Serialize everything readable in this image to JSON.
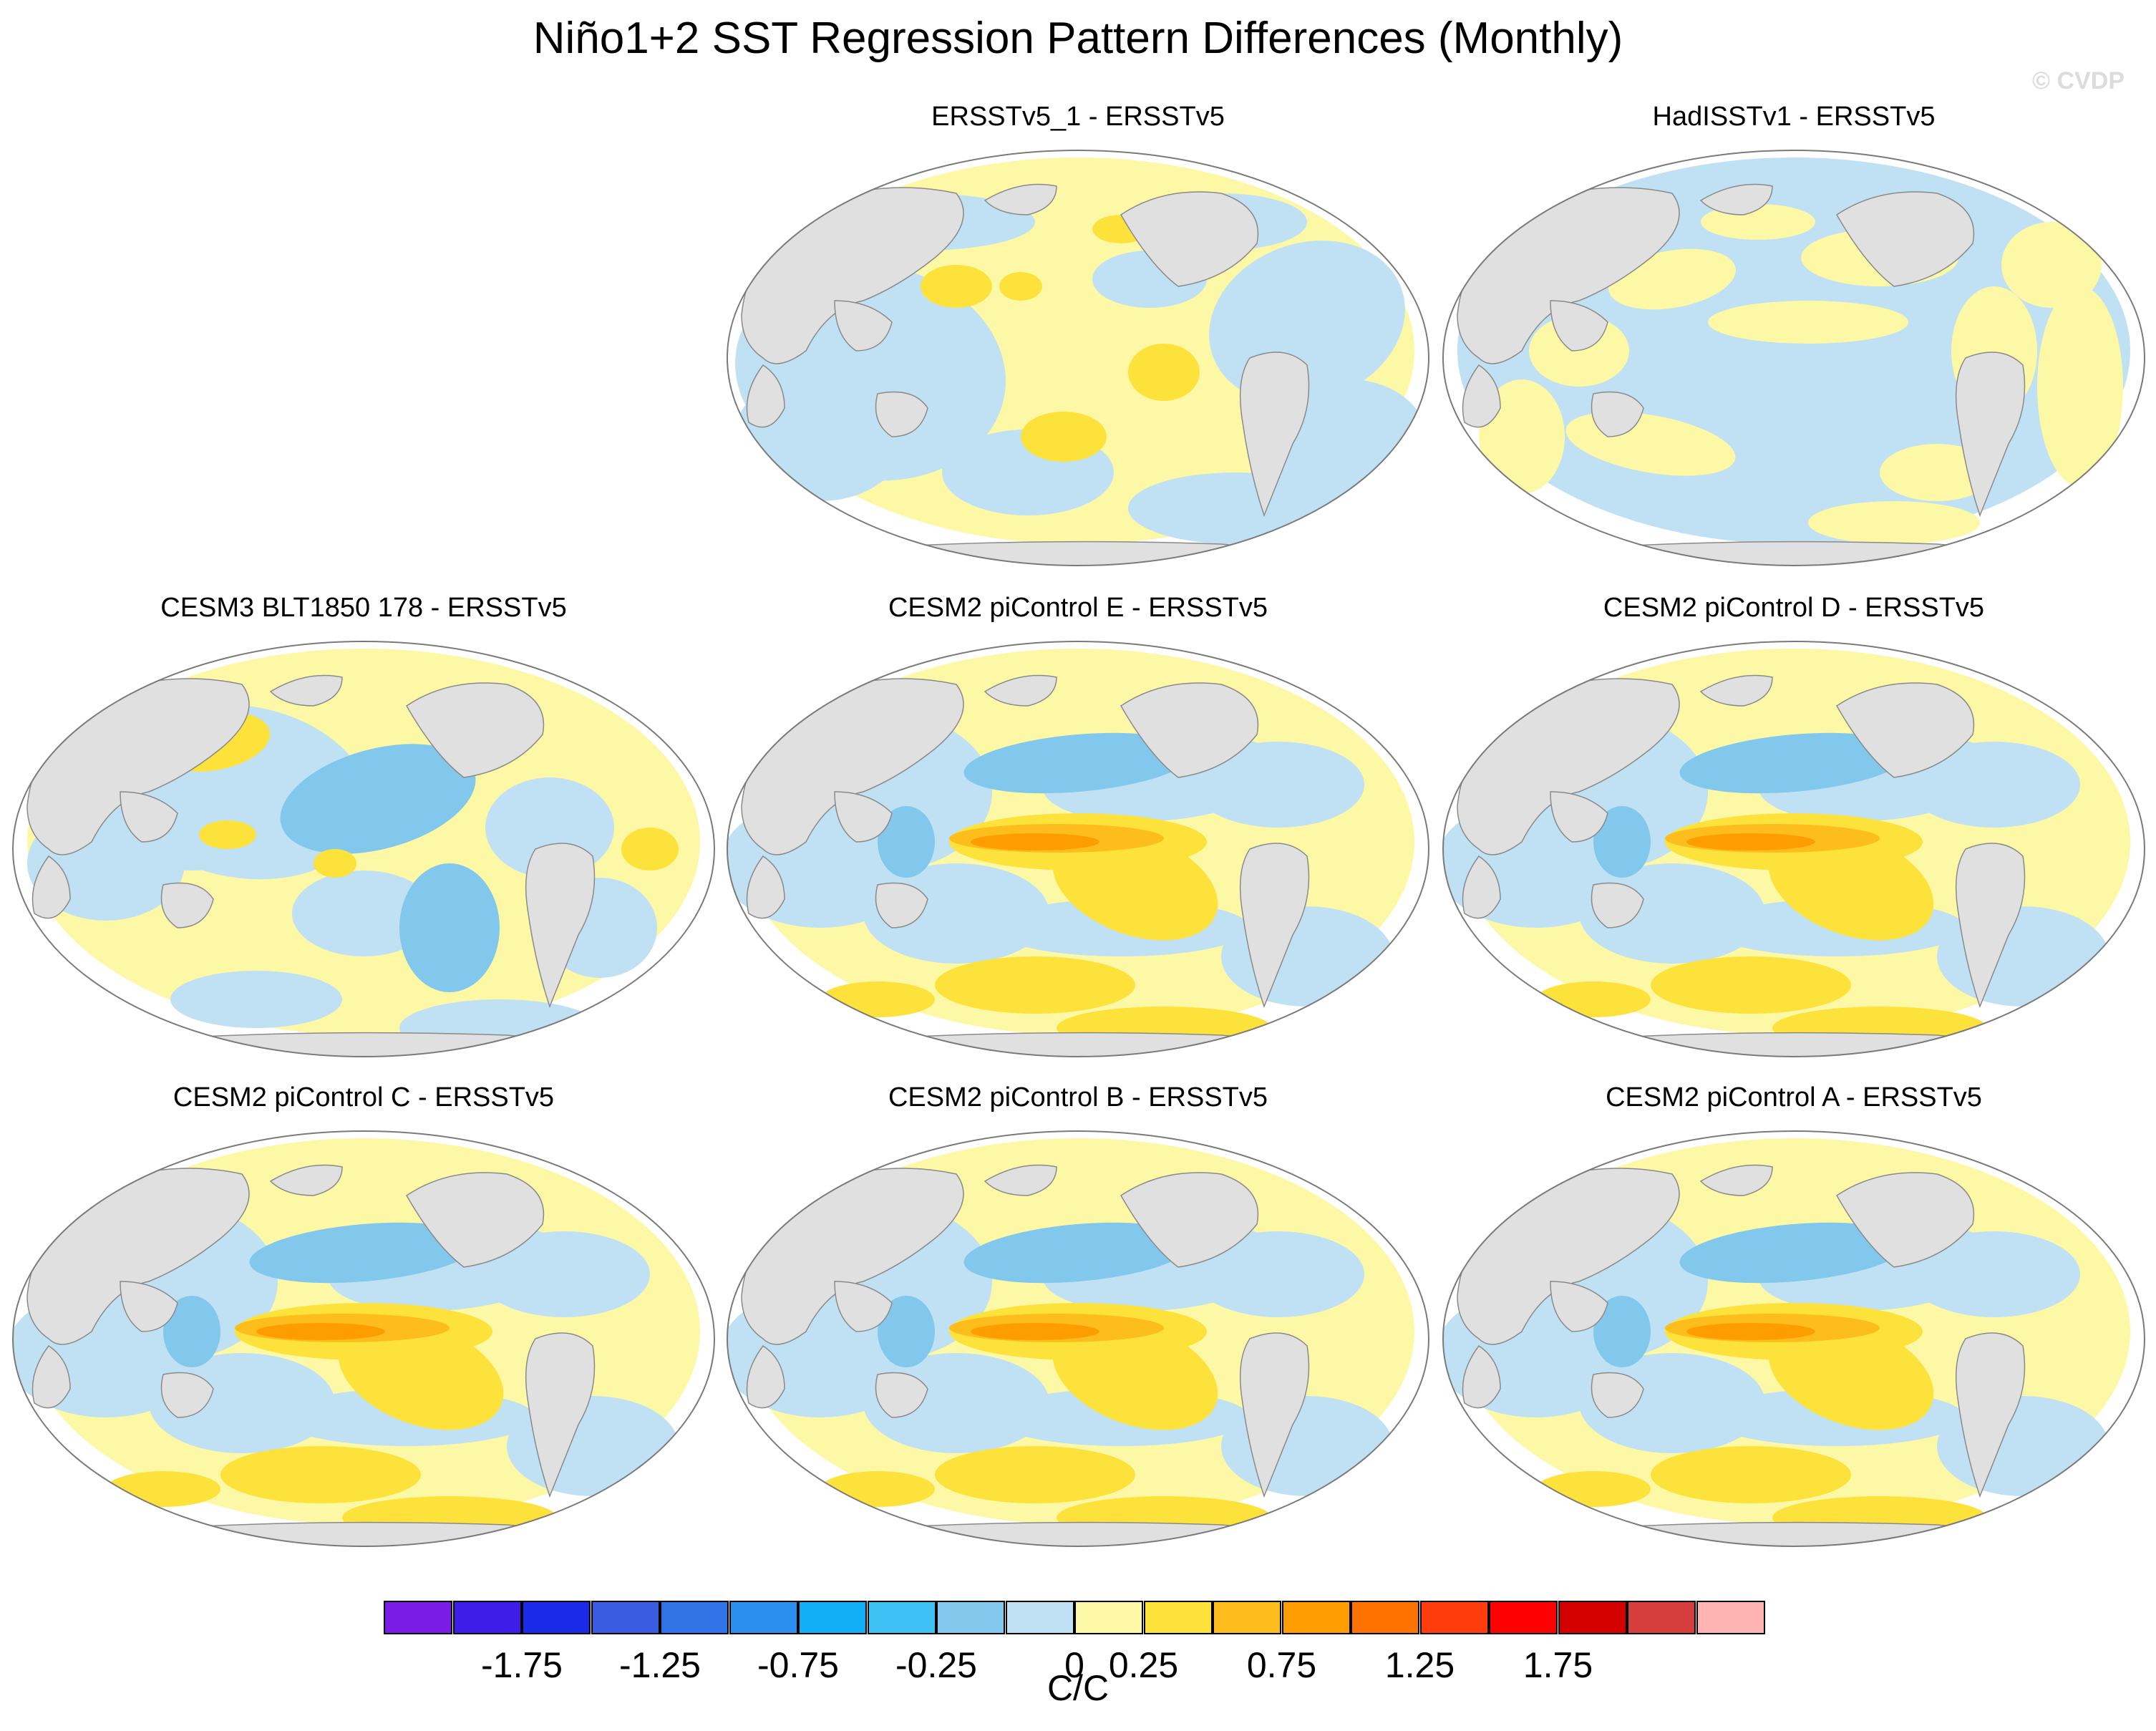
{
  "figure": {
    "title": "Niño1+2 SST Regression Pattern Differences (Monthly)",
    "watermark": "© CVDP"
  },
  "panels": [
    {
      "title": "ERSSTv5_1 - ERSSTv5",
      "row": 0,
      "col": 1,
      "pattern": "obs_diff_a"
    },
    {
      "title": "HadISSTv1 - ERSSTv5",
      "row": 0,
      "col": 2,
      "pattern": "obs_diff_b"
    },
    {
      "title": "CESM3 BLT1850 178 - ERSSTv5",
      "row": 1,
      "col": 0,
      "pattern": "model_weak"
    },
    {
      "title": "CESM2 piControl E - ERSSTv5",
      "row": 1,
      "col": 1,
      "pattern": "model_strong"
    },
    {
      "title": "CESM2 piControl D - ERSSTv5",
      "row": 1,
      "col": 2,
      "pattern": "model_strong"
    },
    {
      "title": "CESM2 piControl C - ERSSTv5",
      "row": 2,
      "col": 0,
      "pattern": "model_strong"
    },
    {
      "title": "CESM2 piControl B - ERSSTv5",
      "row": 2,
      "col": 1,
      "pattern": "model_strong"
    },
    {
      "title": "CESM2 piControl A - ERSSTv5",
      "row": 2,
      "col": 2,
      "pattern": "model_strong"
    }
  ],
  "colorbar": {
    "unit": "C/C",
    "colors": [
      "#7a1ce6",
      "#3f1de8",
      "#1a2ae6",
      "#3a5ae0",
      "#2f73e6",
      "#2a8fee",
      "#10aef5",
      "#3ec2f6",
      "#82c8ec",
      "#bfe1f3",
      "#fdf8a6",
      "#fde23b",
      "#fcbd1d",
      "#fd9d00",
      "#fe7300",
      "#ff3c0b",
      "#ff0000",
      "#d40000",
      "#d63e3e",
      "#ffb3b3"
    ],
    "tick_labels": [
      "-1.75",
      "-1.25",
      "-0.75",
      "-0.25",
      "0",
      "0.25",
      "0.75",
      "1.25",
      "1.75"
    ],
    "tick_boundaries": [
      2,
      4,
      6,
      8,
      10,
      11,
      13,
      15,
      17
    ]
  },
  "palette": {
    "land": "#e0e0e0",
    "coast": "#8a8a8a",
    "neg_weak": "#bfe1f3",
    "neg_mod": "#82c8ec",
    "neg_strong": "#3ec2f6",
    "pos_weak": "#fdf8a6",
    "pos_mod": "#fde23b",
    "pos_strong": "#fcbd1d",
    "pos_core": "#fd9d00"
  }
}
